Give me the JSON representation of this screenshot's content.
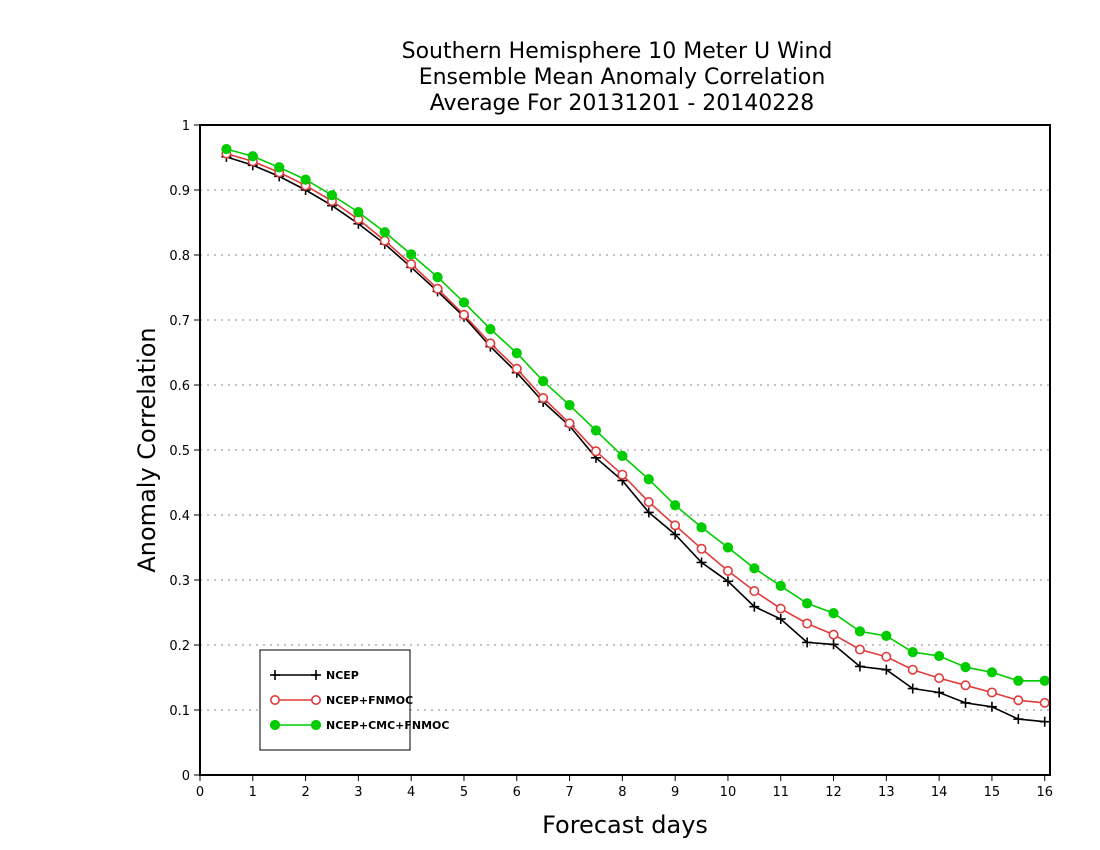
{
  "chart_data": {
    "type": "line",
    "title": [
      "Southern Hemisphere 10 Meter U Wind",
      "Ensemble Mean Anomaly Correlation",
      "Average For 20131201 - 20140228"
    ],
    "xlabel": "Forecast days",
    "ylabel": "Anomaly Correlation",
    "xlim": [
      0,
      16.1
    ],
    "ylim": [
      0,
      1
    ],
    "xticks": [
      "0",
      "1",
      "2",
      "3",
      "4",
      "5",
      "6",
      "7",
      "8",
      "9",
      "10",
      "11",
      "12",
      "13",
      "14",
      "15",
      "16"
    ],
    "yticks": [
      "0",
      "0.1",
      "0.2",
      "0.3",
      "0.4",
      "0.5",
      "0.6",
      "0.7",
      "0.8",
      "0.9",
      "1"
    ],
    "grid": "horizontal dotted",
    "legend_position": "bottom-left",
    "x": [
      0.5,
      1,
      1.5,
      2,
      2.5,
      3,
      3.5,
      4,
      4.5,
      5,
      5.5,
      6,
      6.5,
      7,
      7.5,
      8,
      8.5,
      9,
      9.5,
      10,
      10.5,
      11,
      11.5,
      12,
      12.5,
      13,
      13.5,
      14,
      14.5,
      15,
      15.5,
      16
    ],
    "series": [
      {
        "name": "NCEP",
        "color": "#000000",
        "marker": "plus",
        "values": [
          0.951,
          0.938,
          0.921,
          0.9,
          0.876,
          0.848,
          0.817,
          0.781,
          0.744,
          0.705,
          0.659,
          0.619,
          0.574,
          0.537,
          0.488,
          0.453,
          0.404,
          0.37,
          0.327,
          0.298,
          0.259,
          0.24,
          0.204,
          0.201,
          0.167,
          0.162,
          0.133,
          0.127,
          0.111,
          0.105,
          0.086,
          0.082
        ]
      },
      {
        "name": "NCEP+FNMOC",
        "color": "#e03c3c",
        "marker": "open-circle",
        "values": [
          0.956,
          0.944,
          0.927,
          0.907,
          0.883,
          0.855,
          0.822,
          0.786,
          0.748,
          0.708,
          0.664,
          0.625,
          0.58,
          0.541,
          0.498,
          0.462,
          0.42,
          0.384,
          0.348,
          0.314,
          0.283,
          0.256,
          0.233,
          0.216,
          0.193,
          0.182,
          0.162,
          0.149,
          0.138,
          0.127,
          0.115,
          0.111
        ]
      },
      {
        "name": "NCEP+CMC+FNMOC",
        "color": "#00cc00",
        "marker": "filled-circle",
        "values": [
          0.963,
          0.952,
          0.935,
          0.916,
          0.892,
          0.866,
          0.835,
          0.801,
          0.766,
          0.727,
          0.686,
          0.649,
          0.606,
          0.569,
          0.53,
          0.491,
          0.455,
          0.415,
          0.381,
          0.35,
          0.318,
          0.291,
          0.264,
          0.249,
          0.221,
          0.214,
          0.189,
          0.183,
          0.166,
          0.158,
          0.145,
          0.145
        ]
      }
    ]
  }
}
